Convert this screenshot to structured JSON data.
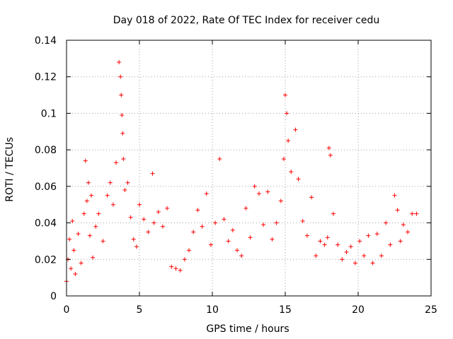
{
  "chart_data": {
    "type": "scatter",
    "title": "Day 018 of 2022, Rate Of TEC Index for receiver cedu",
    "xlabel": "GPS time / hours",
    "ylabel": "ROTI / TECUs",
    "xlim": [
      0,
      25
    ],
    "ylim": [
      0,
      0.14
    ],
    "xticks": [
      "0",
      "5",
      "10",
      "15",
      "20",
      "25"
    ],
    "yticks": [
      "0",
      "0.02",
      "0.04",
      "0.06",
      "0.08",
      "0.1",
      "0.12",
      "0.14"
    ],
    "grid": true,
    "marker": "+",
    "color": "#ff0000",
    "series": [
      {
        "x": [
          0.0,
          0.1,
          0.2,
          0.3,
          0.4,
          0.5,
          0.6,
          0.8,
          1.0,
          1.2,
          1.3,
          1.4,
          1.5,
          1.6,
          1.7,
          1.8,
          2.0,
          2.2,
          2.5,
          2.8,
          3.0,
          3.2,
          3.4,
          3.6,
          3.7,
          3.75,
          3.8,
          3.85,
          3.9,
          4.0,
          4.2,
          4.4,
          4.6,
          4.8,
          5.0,
          5.3,
          5.6,
          5.9,
          6.0,
          6.3,
          6.6,
          6.9,
          7.2,
          7.5,
          7.8,
          8.1,
          8.4,
          8.7,
          9.0,
          9.3,
          9.6,
          9.9,
          10.2,
          10.5,
          10.8,
          11.1,
          11.4,
          11.7,
          12.0,
          12.3,
          12.6,
          12.9,
          13.2,
          13.5,
          13.8,
          14.1,
          14.4,
          14.7,
          14.9,
          15.0,
          15.1,
          15.2,
          15.4,
          15.7,
          15.9,
          16.2,
          16.5,
          16.8,
          17.1,
          17.4,
          17.7,
          17.9,
          18.0,
          18.1,
          18.3,
          18.6,
          18.9,
          19.2,
          19.5,
          19.8,
          20.1,
          20.4,
          20.7,
          21.0,
          21.3,
          21.6,
          21.9,
          22.2,
          22.5,
          22.7,
          22.9,
          23.1,
          23.4,
          23.7,
          24.0
        ],
        "y": [
          0.008,
          0.02,
          0.031,
          0.015,
          0.041,
          0.025,
          0.012,
          0.034,
          0.018,
          0.045,
          0.074,
          0.052,
          0.062,
          0.033,
          0.055,
          0.021,
          0.038,
          0.045,
          0.03,
          0.055,
          0.062,
          0.05,
          0.073,
          0.128,
          0.12,
          0.11,
          0.099,
          0.089,
          0.075,
          0.058,
          0.062,
          0.043,
          0.031,
          0.027,
          0.05,
          0.042,
          0.035,
          0.067,
          0.04,
          0.046,
          0.038,
          0.048,
          0.016,
          0.015,
          0.014,
          0.02,
          0.025,
          0.035,
          0.047,
          0.038,
          0.056,
          0.028,
          0.04,
          0.075,
          0.042,
          0.03,
          0.036,
          0.025,
          0.022,
          0.048,
          0.032,
          0.06,
          0.056,
          0.039,
          0.057,
          0.031,
          0.04,
          0.052,
          0.075,
          0.11,
          0.1,
          0.085,
          0.068,
          0.091,
          0.064,
          0.041,
          0.033,
          0.054,
          0.022,
          0.03,
          0.028,
          0.032,
          0.081,
          0.077,
          0.045,
          0.028,
          0.02,
          0.024,
          0.027,
          0.018,
          0.03,
          0.022,
          0.033,
          0.018,
          0.034,
          0.022,
          0.04,
          0.028,
          0.055,
          0.047,
          0.03,
          0.039,
          0.035,
          0.045,
          0.045
        ]
      }
    ]
  }
}
